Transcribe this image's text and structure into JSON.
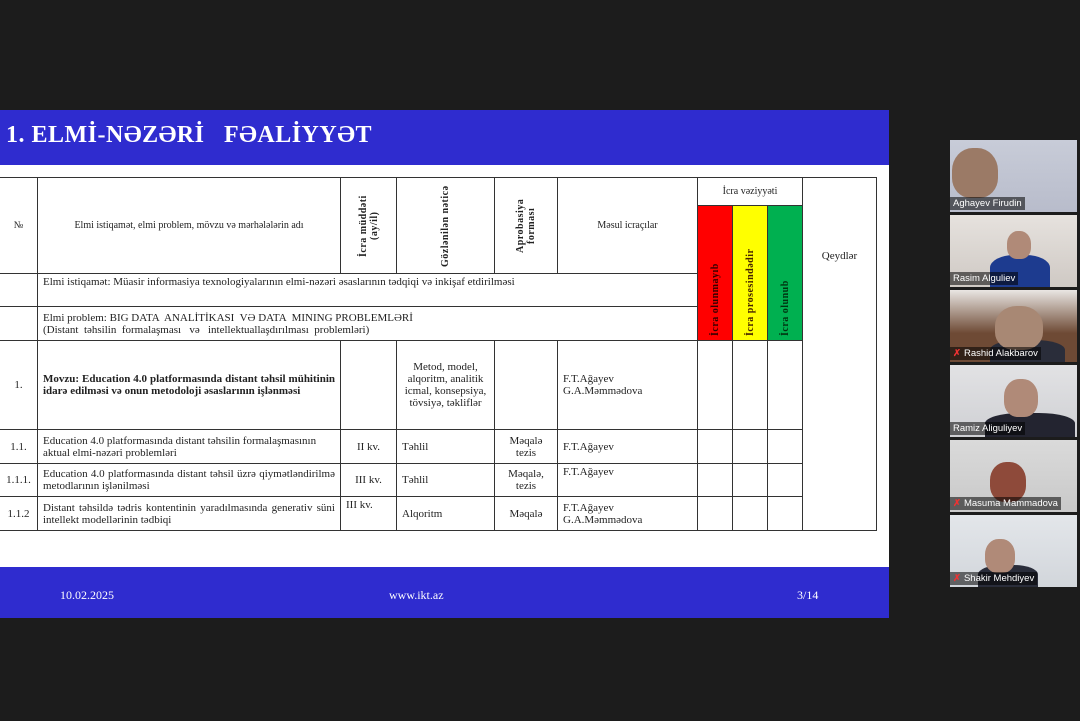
{
  "slide": {
    "title": "1. ELMİ-NƏZƏRİ   FƏALİYYƏT",
    "footer": {
      "date": "10.02.2025",
      "url": "www.ikt.az",
      "page": "3/14"
    },
    "table": {
      "headers": {
        "no": "№",
        "name": "Elmi istiqamət, elmi problem, mövzu və mərhələlərin adı",
        "duration": "İcra müddəti (ay/il)",
        "result": "Gözlənilən nəticə",
        "approval": "Aprobasiya forması",
        "executors": "Məsul icraçılar",
        "status_group": "İcra vəziyyəti",
        "status_not_done": "İcra olunmayıb",
        "status_in_progress": "İcra prosesindədir",
        "status_done": "İcra olunub",
        "notes": "Qeydlər"
      },
      "direction": "Elmi istiqamət: Müasir informasiya texnologiyalarının elmi-nəzəri əsaslarının tədqiqi və inkişaf etdirilməsi",
      "problem_line1": "Elmi problem: BIG DATA  ANALİTİKASI  VƏ DATA  MINING PROBLEMLƏRİ",
      "problem_line2": "(Distant  təhsilin  formalaşması   və   intellektuallaşdırılması  problemləri)",
      "rows": [
        {
          "no": "1.",
          "name": "Movzu: Education 4.0 platformasında distant təhsil mühitinin idarə edilməsi və onun metodoloji əsaslarının işlənməsi",
          "duration": "",
          "result": "Metod, model, alqoritm, analitik icmal, konsepsiya, tövsiyə, təkliflər",
          "approval": "",
          "executors": "F.T.Ağayev\nG.A.Məmmədova"
        },
        {
          "no": "1.1.",
          "name": "Education 4.0 platformasında distant təhsilin formalaşmasının aktual elmi-nəzəri problemləri",
          "duration": "II kv.",
          "result": "Təhlil",
          "approval": "Məqalə tezis",
          "executors": "F.T.Ağayev"
        },
        {
          "no": "1.1.1.",
          "name": "Education 4.0 platformasında distant təhsil üzrə qiymətləndirilmə metodlarının işlənilməsi",
          "duration": "III kv.",
          "result": "Təhlil",
          "approval": "Məqalə, tezis",
          "executors": "F.T.Ağayev"
        },
        {
          "no": "1.1.2",
          "name": "Distant təhsildə tədris kontentinin yaradılmasında generativ süni intellekt modellərinin tədbiqi",
          "duration": "III kv.",
          "result": "Alqoritm",
          "approval": "Məqalə",
          "executors": "F.T.Ağayev\nG.A.Məmmədova"
        }
      ]
    }
  },
  "participants": [
    {
      "name": "Aghayev Firudin",
      "muted": false
    },
    {
      "name": "Rasim Alguliev",
      "muted": false
    },
    {
      "name": "Rashid Alakbarov",
      "muted": true
    },
    {
      "name": "Ramiz Aliguliyev",
      "muted": false
    },
    {
      "name": "Masuma Mammadova",
      "muted": true
    },
    {
      "name": "Shakir Mehdiyev",
      "muted": true
    }
  ],
  "colors": {
    "slide_blue": "#2f2ccf",
    "not_done": "#ff0000",
    "in_progress": "#ffff00",
    "done": "#00b050"
  }
}
